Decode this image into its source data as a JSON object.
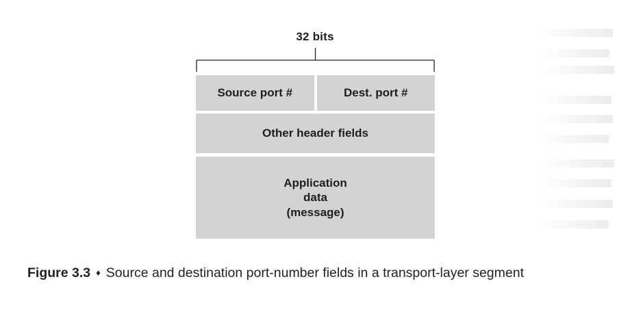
{
  "bracket_label": "32 bits",
  "fields": {
    "source_port": "Source port #",
    "dest_port": "Dest. port #",
    "other_header": "Other header fields",
    "app_data": [
      "Application",
      "data",
      "(message)"
    ]
  },
  "caption": {
    "figure_label": "Figure 3.3",
    "separator": "♦",
    "text": "Source and destination port-number fields in a transport-layer segment"
  }
}
